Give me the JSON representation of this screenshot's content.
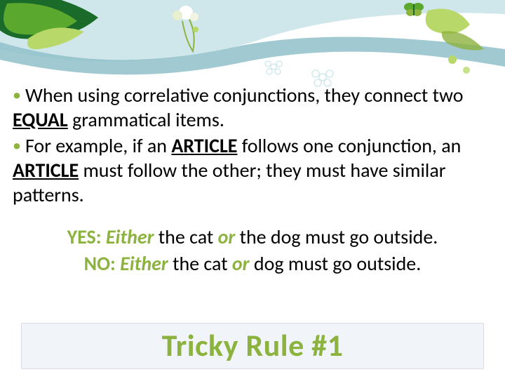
{
  "colors": {
    "accent_green": "#8db33f",
    "dark_leaf": "#1a6b2a",
    "mid_green": "#5aa82e",
    "light_green": "#b8d96a",
    "pale_cyan": "#cfe7ea",
    "sky_blue": "#8fbfca",
    "white": "#ffffff",
    "text": "#000000",
    "title_box_bg": "#f1f4f9",
    "title_box_border": "#d6dbe6"
  },
  "typography": {
    "body_fontsize_pt": 21,
    "title_fontsize_pt": 33,
    "font_family": "Calibri"
  },
  "bullets": [
    {
      "prefix": "• ",
      "segments": [
        {
          "t": "When using correlative conjunctions, they connect two "
        },
        {
          "t": "EQUAL",
          "emph": true
        },
        {
          "t": " grammatical items."
        }
      ]
    },
    {
      "prefix": "• ",
      "segments": [
        {
          "t": "For example, if an "
        },
        {
          "t": "ARTICLE",
          "emph": true
        },
        {
          "t": " follows one conjunction, an "
        },
        {
          "t": "ARTICLE",
          "emph": true
        },
        {
          "t": " must follow the other; they must have similar patterns."
        }
      ]
    }
  ],
  "examples": {
    "yes": {
      "label": "YES:",
      "parts": [
        {
          "t": " "
        },
        {
          "t": "Either",
          "kw": true
        },
        {
          "t": " the cat "
        },
        {
          "t": "or",
          "kw": true
        },
        {
          "t": " the dog must go outside."
        }
      ]
    },
    "no": {
      "label": "NO:",
      "parts": [
        {
          "t": " "
        },
        {
          "t": "Either",
          "kw": true
        },
        {
          "t": " the cat "
        },
        {
          "t": "or",
          "kw": true
        },
        {
          "t": " dog must go outside."
        }
      ]
    }
  },
  "title": "Tricky Rule #1"
}
